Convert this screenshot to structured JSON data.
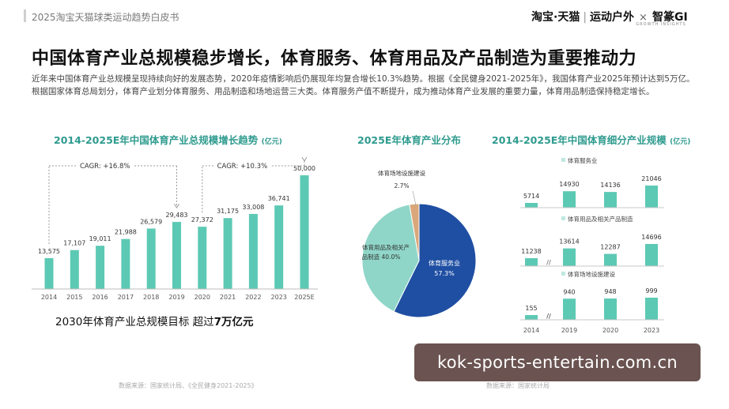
{
  "header": {
    "doc_title": "2025淘宝天猫球类运动趋势白皮书",
    "brand_main": "淘宝·天猫",
    "brand_sub": "运动户外",
    "brand_x": "×",
    "brand_partner": "智篆GI",
    "brand_partner_sub": "GROWTH INSIGHTS"
  },
  "headline": "中国体育产业总规模稳步增长，体育服务、体育用品及产品制造为重要推动力",
  "intro": "近年来中国体育产业总规模呈现持续向好的发展态势，2020年疫情影响后仍展现年均复合增长10.3%趋势。根据《全民健身2021-2025年》，我国体育产业2025年预计达到5万亿。根据国家体育总局划分，体育产业划分体育服务、用品制造和场地运营三大类。体育服务产值不断提升，成为推动体育产业发展的重要力量，体育用品制造保持稳定增长。",
  "panels": {
    "left_title": "2014-2025E年中国体育产业总规模增长趋势",
    "left_unit": "(亿元)",
    "mid_title": "2025E年体育产业分布",
    "right_title": "2014-2025E年中国体育细分产业规模",
    "right_unit": "(亿元)"
  },
  "target": {
    "prefix": "2030年体育产业总规模目标 超过",
    "emph": "7万亿元"
  },
  "sources": {
    "left": "数据来源：国家统计局、《全民健身2021-2025》",
    "right": "数据来源：国家统计局"
  },
  "watermark": "kok-sports-entertain.com.cn",
  "colors": {
    "teal": "#5cc9b4",
    "teal_title": "#2f9b8f",
    "navy": "#1f4fa3",
    "light_teal": "#8fd6c8",
    "tan": "#d9a77a"
  },
  "chart_data": [
    {
      "type": "bar",
      "title": "2014-2025E年中国体育产业总规模增长趋势",
      "unit": "亿元",
      "categories": [
        "2014",
        "2015",
        "2016",
        "2017",
        "2018",
        "2019",
        "2020",
        "2021",
        "2022",
        "2023",
        "2025E"
      ],
      "values": [
        13575,
        17107,
        19011,
        21988,
        26579,
        29483,
        27372,
        31175,
        33008,
        36741,
        50000
      ],
      "value_labels": [
        "13,575",
        "17,107",
        "19,011",
        "21,988",
        "26,579",
        "29,483",
        "27,372",
        "31,175",
        "33,008",
        "36,741",
        "50,000"
      ],
      "annotations": [
        {
          "text": "CAGR: +16.8%",
          "from": "2014",
          "to": "2019"
        },
        {
          "text": "CAGR: +10.3%",
          "from": "2020",
          "to": "2025E"
        }
      ],
      "grid": false,
      "legend": "none"
    },
    {
      "type": "pie",
      "title": "2025E年体育产业分布",
      "slices": [
        {
          "label": "体育服务业",
          "value": 57.3,
          "value_label": "57.3%",
          "color": "#1f4fa3"
        },
        {
          "label": "体育用品及相关产品制造",
          "label_lines": [
            "体育用品及相关产",
            "品制造"
          ],
          "value": 40.0,
          "value_label": "40.0%",
          "color": "#8fd6c8"
        },
        {
          "label": "体育场地设施建设",
          "value": 2.7,
          "value_label": "2.7%",
          "color": "#d9a77a"
        }
      ]
    },
    {
      "type": "bar",
      "title": "2014-2025E年中国体育细分产业规模",
      "unit": "亿元",
      "categories": [
        "2014",
        "2019",
        "2020",
        "2023"
      ],
      "series": [
        {
          "name": "体育服务业",
          "values": [
            5714,
            14930,
            14136,
            21046
          ]
        },
        {
          "name": "体育用品及相关产品制造",
          "values": [
            11238,
            13614,
            12287,
            14696
          ]
        },
        {
          "name": "体育场地设施建设",
          "values": [
            155,
            940,
            948,
            999
          ]
        }
      ],
      "axis_break": "//",
      "grid": false,
      "legend": "inline labels above each series"
    }
  ]
}
